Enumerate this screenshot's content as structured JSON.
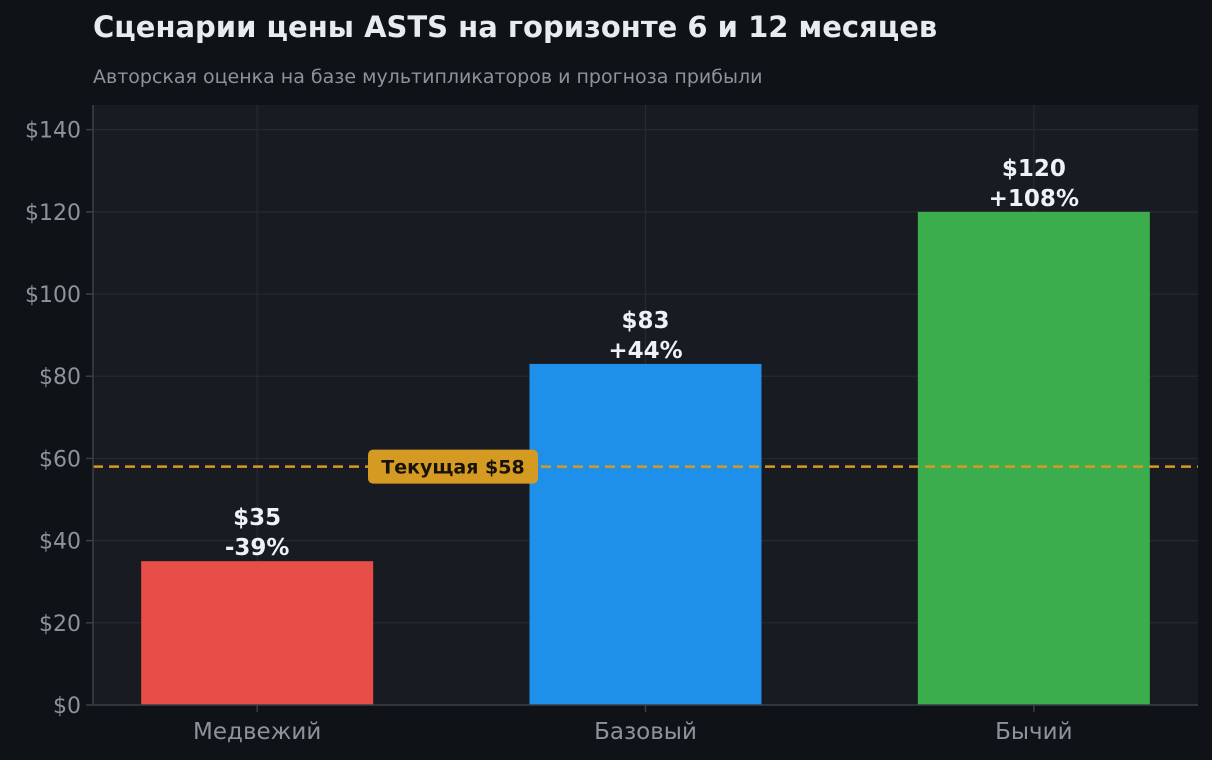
{
  "title": "Сценарии цены ASTS на горизонте 6 и 12 месяцев",
  "subtitle": "Авторская оценка на базе мультипликаторов и прогноза прибыли",
  "colors": {
    "background": "#0f1317",
    "plot_background": "#181b22",
    "grid": "#252a33",
    "axis": "#3a3f47",
    "reference": "#d49a22"
  },
  "chart_data": {
    "type": "bar",
    "categories": [
      "Медвежий",
      "Базовый",
      "Бычий"
    ],
    "values": [
      35,
      83,
      120
    ],
    "bar_colors": [
      "#e64e47",
      "#1f90ea",
      "#3cad4c"
    ],
    "value_labels": [
      "$35",
      "$83",
      "$120"
    ],
    "change_labels": [
      "-39%",
      "+44%",
      "+108%"
    ],
    "ylim": [
      0,
      146
    ],
    "yticks": [
      0,
      20,
      40,
      60,
      80,
      100,
      120,
      140
    ],
    "ytick_labels": [
      "$0",
      "$20",
      "$40",
      "$60",
      "$80",
      "$100",
      "$120",
      "$140"
    ],
    "grid": true,
    "reference_line": {
      "value": 58,
      "label": "Текущая $58"
    }
  }
}
